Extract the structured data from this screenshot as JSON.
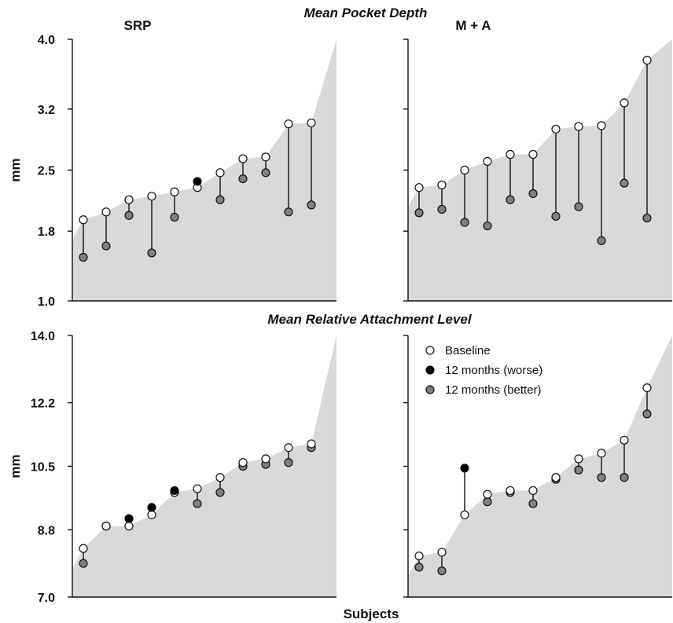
{
  "figure": {
    "top_title": "Mean Pocket Depth",
    "middle_title": "Mean  Relative Attachment Level",
    "x_label": "Subjects"
  },
  "legend": {
    "placement": "top-left of bottom-right panel",
    "items": [
      {
        "label": "Baseline",
        "color": "#ffffff"
      },
      {
        "label": "12 months (worse)",
        "color": "#000000"
      },
      {
        "label": "12 months (better)",
        "color": "#808080"
      }
    ]
  },
  "colors": {
    "baseline_fill": "#ffffff",
    "worse_fill": "#000000",
    "better_fill": "#808080",
    "area_fill": "#d9d9d9",
    "stem": "#111111"
  },
  "chart_data": [
    {
      "type": "scatter",
      "title": "SRP",
      "ylabel": "mm",
      "xlabel": "",
      "ylim": [
        1.0,
        4.0
      ],
      "yticks": [
        "1.0",
        "1.8",
        "2.5",
        "3.2",
        "4.0"
      ],
      "grid": false,
      "series": [
        {
          "name": "Baseline",
          "values": [
            1.93,
            2.02,
            2.16,
            2.2,
            2.25,
            2.3,
            2.47,
            2.63,
            2.65,
            3.03,
            3.04
          ]
        },
        {
          "name": "12 months",
          "values": [
            1.5,
            1.63,
            1.98,
            1.55,
            1.96,
            2.37,
            2.16,
            2.4,
            2.47,
            2.02,
            2.1
          ]
        }
      ]
    },
    {
      "type": "scatter",
      "title": "M + A",
      "ylabel": "",
      "xlabel": "",
      "ylim": [
        1.0,
        4.0
      ],
      "yticks": [
        "1.0",
        "1.8",
        "2.5",
        "3.2",
        "4.0"
      ],
      "grid": false,
      "series": [
        {
          "name": "Baseline",
          "values": [
            2.3,
            2.33,
            2.5,
            2.6,
            2.68,
            2.68,
            2.97,
            3.0,
            3.01,
            3.27,
            3.76
          ]
        },
        {
          "name": "12 months",
          "values": [
            2.01,
            2.05,
            1.9,
            1.86,
            2.16,
            2.23,
            1.97,
            2.08,
            1.69,
            2.35,
            1.95
          ]
        }
      ]
    },
    {
      "type": "scatter",
      "title": "",
      "ylabel": "mm",
      "xlabel": "Subjects",
      "ylim": [
        7.0,
        14.0
      ],
      "yticks": [
        "7.0",
        "8.8",
        "10.5",
        "12.2",
        "14.0"
      ],
      "grid": false,
      "series": [
        {
          "name": "Baseline",
          "values": [
            8.3,
            8.9,
            8.9,
            9.2,
            9.8,
            9.9,
            10.2,
            10.6,
            10.7,
            11.0,
            11.1
          ]
        },
        {
          "name": "12 months",
          "values": [
            7.9,
            8.9,
            9.1,
            9.4,
            9.85,
            9.5,
            9.8,
            10.5,
            10.55,
            10.6,
            11.0
          ]
        }
      ]
    },
    {
      "type": "scatter",
      "title": "",
      "ylabel": "",
      "xlabel": "",
      "ylim": [
        7.0,
        14.0
      ],
      "yticks": [
        "7.0",
        "8.8",
        "10.5",
        "12.2",
        "14.0"
      ],
      "grid": false,
      "series": [
        {
          "name": "Baseline",
          "values": [
            8.1,
            8.2,
            9.2,
            9.75,
            9.85,
            9.85,
            10.2,
            10.7,
            10.85,
            11.2,
            12.6
          ]
        },
        {
          "name": "12 months",
          "values": [
            7.8,
            7.7,
            10.45,
            9.55,
            9.8,
            9.5,
            10.15,
            10.4,
            10.2,
            10.2,
            11.9
          ]
        }
      ]
    }
  ]
}
